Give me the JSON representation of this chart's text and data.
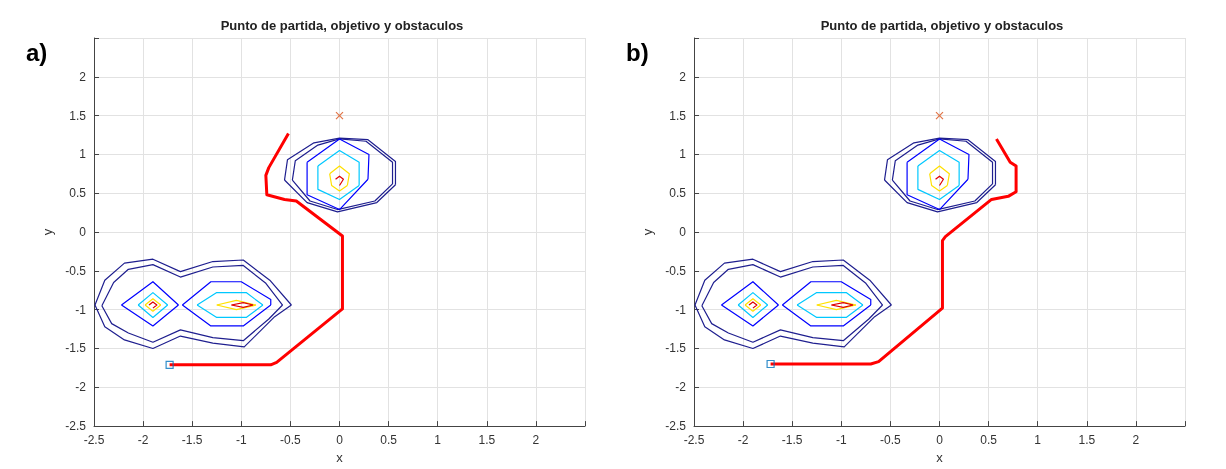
{
  "chart_data": [
    {
      "type": "line",
      "title": "Punto de partida, objetivo y obstaculos",
      "xlabel": "x",
      "ylabel": "y",
      "annotations": [
        "a)"
      ],
      "grid": true,
      "xlim": [
        -2.5,
        2.5
      ],
      "xticks": [
        -2.5,
        -2,
        -1.5,
        -1,
        -0.5,
        0,
        0.5,
        1,
        1.5,
        2,
        {
          "value": 2.5,
          "label": null
        }
      ],
      "ylim": [
        -2.5,
        2.5
      ],
      "yticks": [
        -2.5,
        -2,
        -1.5,
        -1,
        -0.5,
        0,
        0.5,
        1,
        1.5,
        2,
        {
          "value": 2.5,
          "label": null
        }
      ],
      "series": [
        {
          "color": "#ff0000",
          "x": [
            -1.73,
            -0.7,
            -0.64,
            0.03,
            0.03,
            -0.44,
            -0.56,
            -0.74,
            -0.75,
            -0.72,
            -0.52
          ],
          "values": [
            -1.71,
            -1.71,
            -1.68,
            -0.99,
            -0.05,
            0.4,
            0.42,
            0.48,
            0.73,
            0.83,
            1.27
          ]
        },
        {
          "type": "scatter",
          "marker": "square",
          "color": "#0072bd",
          "x": [
            -1.73
          ],
          "values": [
            -1.71
          ]
        },
        {
          "type": "scatter",
          "marker": "cross",
          "color": "#d95319",
          "x": [
            0
          ],
          "values": [
            1.5
          ]
        },
        {
          "color": "#1f1f8f",
          "x": [
            -2.49,
            -2.39,
            -2.19,
            -1.9,
            -1.62,
            -1.29,
            -0.98,
            -0.71,
            -0.49
          ],
          "values": [
            -0.94,
            -0.62,
            -0.4,
            -0.35,
            -0.51,
            -0.38,
            -0.36,
            -0.62,
            -0.94
          ]
        },
        {
          "color": "#1f1f8f",
          "x": [
            -0.49,
            -0.66,
            -0.97,
            -1.29,
            -1.62,
            -1.9,
            -2.19,
            -2.39,
            -2.49
          ],
          "values": [
            -0.94,
            -1.09,
            -1.48,
            -1.43,
            -1.34,
            -1.5,
            -1.39,
            -1.22,
            -0.94
          ]
        },
        {
          "color": "#1f1f8f",
          "x": [
            -2.42,
            -2.3,
            -2.15,
            -1.9,
            -1.62,
            -1.29,
            -0.98,
            -0.75,
            -0.58
          ],
          "values": [
            -0.95,
            -0.65,
            -0.48,
            -0.42,
            -0.58,
            -0.45,
            -0.43,
            -0.66,
            -0.94
          ]
        },
        {
          "color": "#1f1f8f",
          "x": [
            -0.58,
            -0.72,
            -0.98,
            -1.29,
            -1.62,
            -1.9,
            -2.15,
            -2.32,
            -2.42
          ],
          "values": [
            -0.94,
            -1.12,
            -1.4,
            -1.36,
            -1.26,
            -1.42,
            -1.3,
            -1.18,
            -0.95
          ]
        },
        {
          "color": "#0000ff",
          "x": [
            -2.22,
            -1.9,
            -1.64
          ],
          "values": [
            -0.94,
            -0.64,
            -0.94
          ]
        },
        {
          "color": "#0000ff",
          "x": [
            -1.64,
            -1.9,
            -2.22
          ],
          "values": [
            -0.94,
            -1.21,
            -0.94
          ]
        },
        {
          "color": "#00c8ff",
          "x": [
            -2.05,
            -1.9,
            -1.75
          ],
          "values": [
            -0.94,
            -0.78,
            -0.94
          ]
        },
        {
          "color": "#00c8ff",
          "x": [
            -1.75,
            -1.9,
            -2.05
          ],
          "values": [
            -0.94,
            -1.1,
            -0.94
          ]
        },
        {
          "color": "#ffe000",
          "x": [
            -1.98,
            -1.9,
            -1.82
          ],
          "values": [
            -0.94,
            -0.86,
            -0.94
          ]
        },
        {
          "color": "#ffe000",
          "x": [
            -1.82,
            -1.9,
            -1.98
          ],
          "values": [
            -0.94,
            -1.02,
            -0.94
          ]
        },
        {
          "color": "#e00000",
          "x": [
            -1.94,
            -1.9,
            -1.86,
            -1.9
          ],
          "values": [
            -0.94,
            -0.9,
            -0.94,
            -0.98
          ]
        },
        {
          "color": "#0000ff",
          "x": [
            -1.6,
            -1.31,
            -1.0,
            -0.7,
            -0.7
          ],
          "values": [
            -0.94,
            -0.64,
            -0.64,
            -0.87,
            -0.94
          ]
        },
        {
          "color": "#0000ff",
          "x": [
            -0.7,
            -0.98,
            -1.31,
            -1.6
          ],
          "values": [
            -0.94,
            -1.21,
            -1.21,
            -0.94
          ]
        },
        {
          "color": "#00c8ff",
          "x": [
            -1.45,
            -1.25,
            -0.95,
            -0.78
          ],
          "values": [
            -0.94,
            -0.78,
            -0.78,
            -0.94
          ]
        },
        {
          "color": "#00c8ff",
          "x": [
            -0.78,
            -0.95,
            -1.25,
            -1.45
          ],
          "values": [
            -0.94,
            -1.1,
            -1.1,
            -0.94
          ]
        },
        {
          "color": "#ffe000",
          "x": [
            -1.25,
            -1.05,
            -0.85
          ],
          "values": [
            -0.94,
            -0.88,
            -0.94
          ]
        },
        {
          "color": "#ffe000",
          "x": [
            -0.85,
            -1.05,
            -1.25
          ],
          "values": [
            -0.94,
            -1.0,
            -0.94
          ]
        },
        {
          "color": "#e00000",
          "x": [
            -1.1,
            -0.98,
            -0.88
          ],
          "values": [
            -0.94,
            -0.91,
            -0.94
          ]
        },
        {
          "color": "#e00000",
          "x": [
            -0.88,
            -0.98,
            -1.1
          ],
          "values": [
            -0.94,
            -0.97,
            -0.94
          ]
        },
        {
          "color": "#1f1f8f",
          "x": [
            -0.56,
            -0.53,
            -0.26,
            0.0,
            0.29,
            0.57,
            0.57
          ],
          "values": [
            0.67,
            0.93,
            1.15,
            1.21,
            1.19,
            0.91,
            0.61
          ]
        },
        {
          "color": "#1f1f8f",
          "x": [
            0.57,
            0.38,
            -0.02,
            -0.33,
            -0.56
          ],
          "values": [
            0.61,
            0.38,
            0.26,
            0.38,
            0.67
          ]
        },
        {
          "color": "#1f1f8f",
          "x": [
            -0.48,
            -0.45,
            -0.22,
            0.0,
            0.27,
            0.54,
            0.54
          ],
          "values": [
            0.67,
            0.92,
            1.12,
            1.2,
            1.17,
            0.9,
            0.62
          ]
        },
        {
          "color": "#1f1f8f",
          "x": [
            0.54,
            0.36,
            -0.02,
            -0.3,
            -0.48
          ],
          "values": [
            0.62,
            0.4,
            0.29,
            0.4,
            0.67
          ]
        },
        {
          "color": "#0000ff",
          "x": [
            -0.33,
            0.0,
            0.3,
            0.29
          ],
          "values": [
            0.9,
            1.2,
            1.0,
            0.68
          ]
        },
        {
          "color": "#0000ff",
          "x": [
            0.29,
            0.0,
            -0.33,
            -0.33
          ],
          "values": [
            0.68,
            0.29,
            0.48,
            0.9
          ]
        },
        {
          "color": "#00c8ff",
          "x": [
            -0.22,
            0.0,
            0.2,
            0.2
          ],
          "values": [
            0.85,
            1.05,
            0.9,
            0.6
          ]
        },
        {
          "color": "#00c8ff",
          "x": [
            0.2,
            0.0,
            -0.22,
            -0.22
          ],
          "values": [
            0.6,
            0.42,
            0.55,
            0.85
          ]
        },
        {
          "color": "#ffe000",
          "x": [
            -0.1,
            0.0,
            0.1,
            0.08
          ],
          "values": [
            0.75,
            0.85,
            0.75,
            0.6
          ]
        },
        {
          "color": "#ffe000",
          "x": [
            0.08,
            0.0,
            -0.08,
            -0.1
          ],
          "values": [
            0.6,
            0.53,
            0.6,
            0.75
          ]
        },
        {
          "color": "#e00000",
          "x": [
            -0.04,
            0.0,
            0.04,
            0.0
          ],
          "values": [
            0.68,
            0.72,
            0.68,
            0.6
          ]
        }
      ]
    },
    {
      "type": "line",
      "title": "Punto de partida, objetivo y obstaculos",
      "xlabel": "x",
      "ylabel": "y",
      "annotations": [
        "b)"
      ],
      "grid": true,
      "xlim": [
        -2.5,
        2.5
      ],
      "xticks": [
        -2.5,
        -2,
        -1.5,
        -1,
        -0.5,
        0,
        0.5,
        1,
        1.5,
        2,
        {
          "value": 2.5,
          "label": null
        }
      ],
      "ylim": [
        -2.5,
        2.5
      ],
      "yticks": [
        -2.5,
        -2,
        -1.5,
        -1,
        -0.5,
        0,
        0.5,
        1,
        1.5,
        2,
        {
          "value": 2.5,
          "label": null
        }
      ],
      "series": [
        {
          "color": "#ff0000",
          "x": [
            -1.72,
            -0.7,
            -0.62,
            0.03,
            0.03,
            0.06,
            0.53,
            0.7,
            0.78,
            0.78,
            0.72,
            0.58
          ],
          "values": [
            -1.7,
            -1.7,
            -1.67,
            -0.98,
            -0.11,
            -0.06,
            0.42,
            0.46,
            0.52,
            0.85,
            0.9,
            1.2
          ]
        },
        {
          "type": "scatter",
          "marker": "square",
          "color": "#0072bd",
          "x": [
            -1.72
          ],
          "values": [
            -1.7
          ]
        },
        {
          "type": "scatter",
          "marker": "cross",
          "color": "#d95319",
          "x": [
            0
          ],
          "values": [
            1.5
          ]
        },
        {
          "color": "#1f1f8f",
          "x": [
            -2.49,
            -2.39,
            -2.19,
            -1.9,
            -1.62,
            -1.29,
            -0.98,
            -0.71,
            -0.49
          ],
          "values": [
            -0.94,
            -0.62,
            -0.4,
            -0.35,
            -0.51,
            -0.38,
            -0.36,
            -0.62,
            -0.94
          ]
        },
        {
          "color": "#1f1f8f",
          "x": [
            -0.49,
            -0.66,
            -0.97,
            -1.29,
            -1.62,
            -1.9,
            -2.19,
            -2.39,
            -2.49
          ],
          "values": [
            -0.94,
            -1.09,
            -1.48,
            -1.43,
            -1.34,
            -1.5,
            -1.39,
            -1.22,
            -0.94
          ]
        },
        {
          "color": "#1f1f8f",
          "x": [
            -2.42,
            -2.3,
            -2.15,
            -1.9,
            -1.62,
            -1.29,
            -0.98,
            -0.75,
            -0.58
          ],
          "values": [
            -0.95,
            -0.65,
            -0.48,
            -0.42,
            -0.58,
            -0.45,
            -0.43,
            -0.66,
            -0.94
          ]
        },
        {
          "color": "#1f1f8f",
          "x": [
            -0.58,
            -0.72,
            -0.98,
            -1.29,
            -1.62,
            -1.9,
            -2.15,
            -2.32,
            -2.42
          ],
          "values": [
            -0.94,
            -1.12,
            -1.4,
            -1.36,
            -1.26,
            -1.42,
            -1.3,
            -1.18,
            -0.95
          ]
        },
        {
          "color": "#0000ff",
          "x": [
            -2.22,
            -1.9,
            -1.64
          ],
          "values": [
            -0.94,
            -0.64,
            -0.94
          ]
        },
        {
          "color": "#0000ff",
          "x": [
            -1.64,
            -1.9,
            -2.22
          ],
          "values": [
            -0.94,
            -1.21,
            -0.94
          ]
        },
        {
          "color": "#00c8ff",
          "x": [
            -2.05,
            -1.9,
            -1.75
          ],
          "values": [
            -0.94,
            -0.78,
            -0.94
          ]
        },
        {
          "color": "#00c8ff",
          "x": [
            -1.75,
            -1.9,
            -2.05
          ],
          "values": [
            -0.94,
            -1.1,
            -0.94
          ]
        },
        {
          "color": "#ffe000",
          "x": [
            -1.98,
            -1.9,
            -1.82
          ],
          "values": [
            -0.94,
            -0.86,
            -0.94
          ]
        },
        {
          "color": "#ffe000",
          "x": [
            -1.82,
            -1.9,
            -1.98
          ],
          "values": [
            -0.94,
            -1.02,
            -0.94
          ]
        },
        {
          "color": "#e00000",
          "x": [
            -1.94,
            -1.9,
            -1.86,
            -1.9
          ],
          "values": [
            -0.94,
            -0.9,
            -0.94,
            -0.98
          ]
        },
        {
          "color": "#0000ff",
          "x": [
            -1.6,
            -1.31,
            -1.0,
            -0.7,
            -0.7
          ],
          "values": [
            -0.94,
            -0.64,
            -0.64,
            -0.87,
            -0.94
          ]
        },
        {
          "color": "#0000ff",
          "x": [
            -0.7,
            -0.98,
            -1.31,
            -1.6
          ],
          "values": [
            -0.94,
            -1.21,
            -1.21,
            -0.94
          ]
        },
        {
          "color": "#00c8ff",
          "x": [
            -1.45,
            -1.25,
            -0.95,
            -0.78
          ],
          "values": [
            -0.94,
            -0.78,
            -0.78,
            -0.94
          ]
        },
        {
          "color": "#00c8ff",
          "x": [
            -0.78,
            -0.95,
            -1.25,
            -1.45
          ],
          "values": [
            -0.94,
            -1.1,
            -1.1,
            -0.94
          ]
        },
        {
          "color": "#ffe000",
          "x": [
            -1.25,
            -1.05,
            -0.85
          ],
          "values": [
            -0.94,
            -0.88,
            -0.94
          ]
        },
        {
          "color": "#ffe000",
          "x": [
            -0.85,
            -1.05,
            -1.25
          ],
          "values": [
            -0.94,
            -1.0,
            -0.94
          ]
        },
        {
          "color": "#e00000",
          "x": [
            -1.1,
            -0.98,
            -0.88
          ],
          "values": [
            -0.94,
            -0.91,
            -0.94
          ]
        },
        {
          "color": "#e00000",
          "x": [
            -0.88,
            -0.98,
            -1.1
          ],
          "values": [
            -0.94,
            -0.97,
            -0.94
          ]
        },
        {
          "color": "#1f1f8f",
          "x": [
            -0.56,
            -0.53,
            -0.26,
            0.0,
            0.29,
            0.57,
            0.57
          ],
          "values": [
            0.67,
            0.93,
            1.15,
            1.21,
            1.19,
            0.91,
            0.61
          ]
        },
        {
          "color": "#1f1f8f",
          "x": [
            0.57,
            0.38,
            -0.02,
            -0.33,
            -0.56
          ],
          "values": [
            0.61,
            0.38,
            0.26,
            0.38,
            0.67
          ]
        },
        {
          "color": "#1f1f8f",
          "x": [
            -0.48,
            -0.45,
            -0.22,
            0.0,
            0.27,
            0.54,
            0.54
          ],
          "values": [
            0.67,
            0.92,
            1.12,
            1.2,
            1.17,
            0.9,
            0.62
          ]
        },
        {
          "color": "#1f1f8f",
          "x": [
            0.54,
            0.36,
            -0.02,
            -0.3,
            -0.48
          ],
          "values": [
            0.62,
            0.4,
            0.29,
            0.4,
            0.67
          ]
        },
        {
          "color": "#0000ff",
          "x": [
            -0.33,
            0.0,
            0.3,
            0.29
          ],
          "values": [
            0.9,
            1.2,
            1.0,
            0.68
          ]
        },
        {
          "color": "#0000ff",
          "x": [
            0.29,
            0.0,
            -0.33,
            -0.33
          ],
          "values": [
            0.68,
            0.29,
            0.48,
            0.9
          ]
        },
        {
          "color": "#00c8ff",
          "x": [
            -0.22,
            0.0,
            0.2,
            0.2
          ],
          "values": [
            0.85,
            1.05,
            0.9,
            0.6
          ]
        },
        {
          "color": "#00c8ff",
          "x": [
            0.2,
            0.0,
            -0.22,
            -0.22
          ],
          "values": [
            0.6,
            0.42,
            0.55,
            0.85
          ]
        },
        {
          "color": "#ffe000",
          "x": [
            -0.1,
            0.0,
            0.1,
            0.08
          ],
          "values": [
            0.75,
            0.85,
            0.75,
            0.6
          ]
        },
        {
          "color": "#ffe000",
          "x": [
            0.08,
            0.0,
            -0.08,
            -0.1
          ],
          "values": [
            0.6,
            0.53,
            0.6,
            0.75
          ]
        },
        {
          "color": "#e00000",
          "x": [
            -0.04,
            0.0,
            0.04,
            0.0
          ],
          "values": [
            0.68,
            0.72,
            0.68,
            0.6
          ]
        }
      ]
    }
  ]
}
